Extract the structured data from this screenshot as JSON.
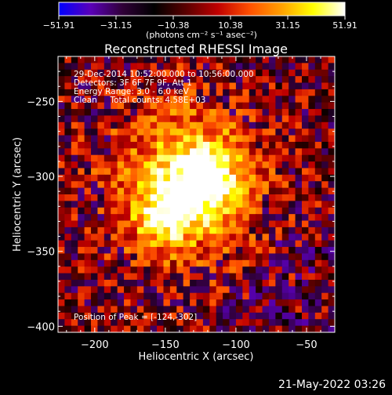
{
  "colorbar": {
    "ticks": [
      "-51.91",
      "-31.15",
      "-10.38",
      "10.38",
      "31.15",
      "51.91"
    ],
    "unit_label": "(photons cm⁻² s⁻¹ asec⁻²)",
    "min": -51.91,
    "max": 51.91,
    "palette": [
      "#0000ff",
      "#5a00b8",
      "#300038",
      "#000000",
      "#5a0000",
      "#c00000",
      "#ff5000",
      "#ffa000",
      "#ffff00",
      "#ffffff"
    ]
  },
  "chart_data": {
    "type": "heatmap",
    "title": "Reconstructed RHESSI Image",
    "xlabel": "Heliocentric X (arcsec)",
    "ylabel": "Heliocentric Y (arcsec)",
    "xlim": [
      -226,
      -30
    ],
    "ylim": [
      -404,
      -220
    ],
    "xticks": [
      -200,
      -150,
      -100,
      -50
    ],
    "yticks": [
      -250,
      -300,
      -350,
      -400
    ],
    "xtick_labels": [
      "−200",
      "−150",
      "−100",
      "−50"
    ],
    "ytick_labels": [
      "−250",
      "−300",
      "−350",
      "−400"
    ],
    "peak": {
      "x": -124,
      "y": -302
    },
    "secondary_source": {
      "x": -150,
      "y": -325
    }
  },
  "annotations": {
    "line1": "29-Dec-2014 10:52:00.000 to 10:56:00.000",
    "line2": "Detectors: 3F 6F 7F 9F, Att 1",
    "line3": "Energy Range: 3.0 - 6.0 keV",
    "line4": "Clean     Total counts: 4.58E+03",
    "peak_text": "Position of Peak = [-124,-302]"
  },
  "footer": {
    "timestamp": "21-May-2022 03:26"
  }
}
